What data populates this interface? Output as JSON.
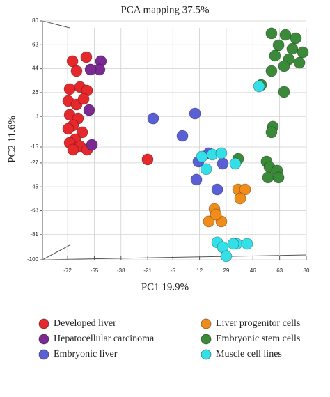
{
  "chart_data": {
    "type": "scatter",
    "title": "PCA mapping 37.5%",
    "x_label": "PC1 19.9%",
    "y_label": "PC2 11.6%",
    "xlim": [
      -88,
      80
    ],
    "ylim": [
      -100,
      80
    ],
    "xticks": [
      -72,
      -55,
      -38,
      -21,
      -5,
      12,
      29,
      46,
      63,
      80
    ],
    "yticks": [
      80,
      62,
      44,
      26,
      8,
      -15,
      -27,
      -45,
      -63,
      -81,
      -100
    ],
    "grid": true,
    "series": [
      {
        "name": "Developed liver",
        "color": "#e4282b",
        "x": [
          -68.9,
          -60.1,
          -66.3,
          -70.7,
          -64.1,
          -59.6,
          -71.6,
          -66.3,
          -61.8,
          -70.7,
          -65.4,
          -68.5,
          -71.6,
          -62.7,
          -67.2,
          -70.7,
          -64.1,
          -59.6,
          -68.5,
          -21.1
        ],
        "y": [
          49.6,
          52.7,
          42.2,
          28.6,
          30.2,
          27.5,
          19.7,
          17.0,
          21.2,
          9.2,
          6.5,
          1.3,
          -1.3,
          -3.9,
          -9.2,
          -11.8,
          -14.4,
          -17.1,
          -17.1,
          -24.4
        ]
      },
      {
        "name": "Hepatocellular carcinoma",
        "color": "#7b2a91",
        "x": [
          -50.8,
          -51.7,
          -57.4,
          -58.3,
          -56.5
        ],
        "y": [
          49.6,
          43.3,
          43.3,
          12.8,
          -13.4
        ]
      },
      {
        "name": "Embryonic liver",
        "color": "#5b5fd6",
        "x": [
          -17.5,
          9.1,
          1.1,
          17.9,
          11.3,
          26.8,
          10.0,
          23.3
        ],
        "y": [
          6.5,
          10.2,
          -6.6,
          -19.7,
          -26.0,
          -27.6,
          -39.6,
          -47.0
        ]
      },
      {
        "name": "Liver progenitor cells",
        "color": "#f08c1a",
        "x": [
          36.6,
          41.0,
          37.9,
          21.5,
          17.9,
          25.9,
          22.4
        ],
        "y": [
          -47.0,
          -47.0,
          -53.8,
          -61.7,
          -71.1,
          -71.1,
          -65.9
        ]
      },
      {
        "name": "Embryonic stem cells",
        "color": "#3a8a3a",
        "x": [
          57.8,
          66.7,
          73.3,
          62.3,
          71.1,
          77.8,
          60.0,
          68.9,
          75.6,
          57.8,
          65.8,
          51.2,
          65.8,
          58.7,
          57.8,
          36.6,
          54.7,
          56.5,
          61.4,
          55.6,
          62.3
        ],
        "y": [
          70.6,
          69.5,
          66.9,
          61.6,
          59.0,
          56.4,
          53.8,
          51.1,
          48.5,
          42.2,
          45.9,
          31.7,
          26.5,
          0.3,
          -3.9,
          -23.9,
          -26.0,
          -30.2,
          -32.8,
          -38.0,
          -38.0
        ]
      },
      {
        "name": "Muscle cell lines",
        "color": "#33e0e8",
        "x": [
          49.9,
          13.5,
          20.2,
          25.9,
          16.2,
          34.8,
          23.3,
          26.8,
          35.7,
          42.3,
          33.5,
          29.0
        ],
        "y": [
          30.7,
          -22.3,
          -20.7,
          -19.7,
          -31.7,
          -27.6,
          -86.8,
          -90.5,
          -87.9,
          -87.9,
          -87.9,
          -97.3
        ]
      }
    ]
  }
}
